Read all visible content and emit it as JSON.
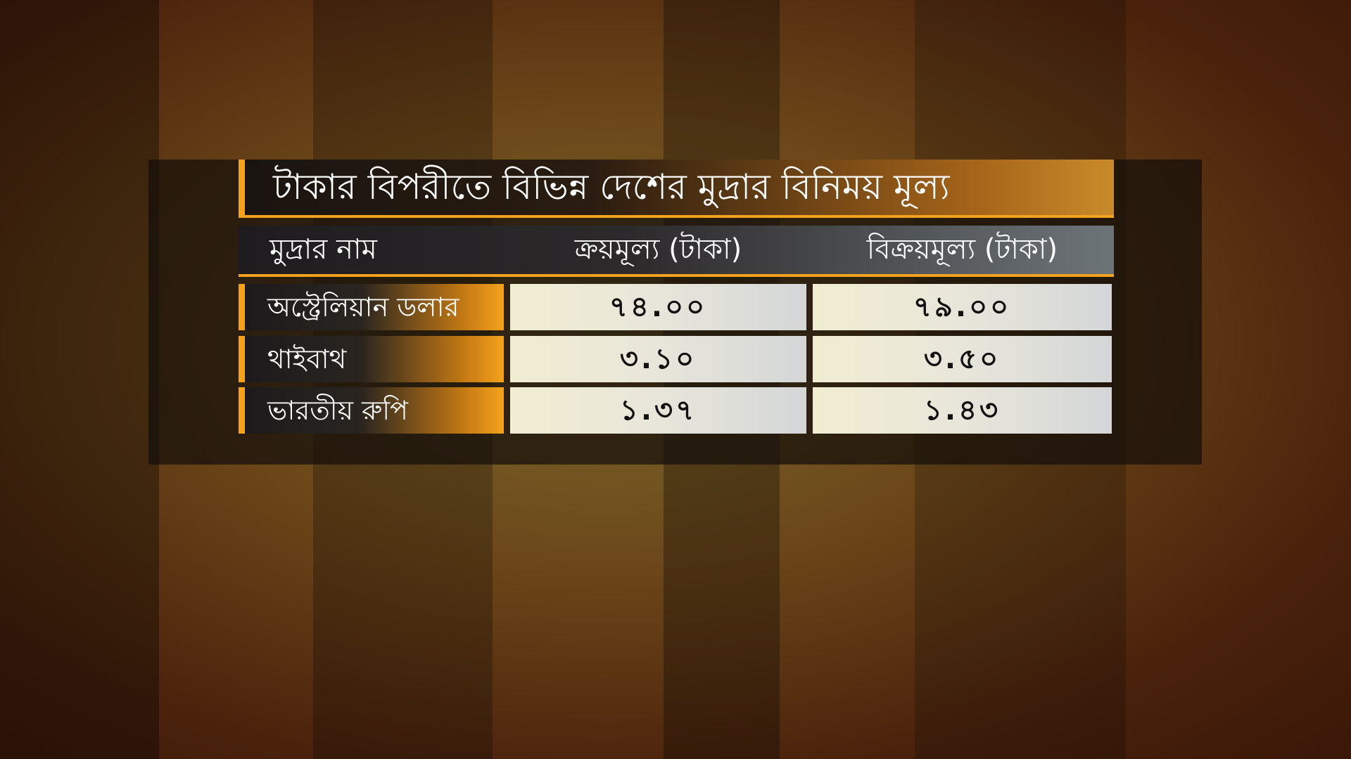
{
  "title": "টাকার বিপরীতে বিভিন্ন দেশের মুদ্রার বিনিময় মূল্য",
  "table": {
    "header": [
      "মুদ্রার নাম",
      "ক্রয়মূল্য (টাকা)",
      "বিক্রয়মূল্য (টাকা)"
    ],
    "rows": [
      [
        "অস্ট্রেলিয়ান ডলার",
        "৭৪.০০",
        "৭৯.০০"
      ],
      [
        "থাইবাথ",
        "৩.১০",
        "৩.৫০"
      ],
      [
        "ভারতীয় রুপি",
        "১.৩৭",
        "১.৪৩"
      ]
    ]
  }
}
